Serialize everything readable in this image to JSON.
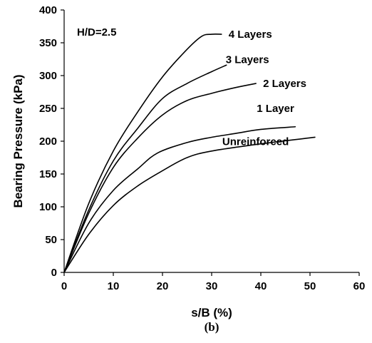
{
  "chart_data": {
    "type": "line",
    "xlabel": "s/B (%)",
    "ylabel": "Bearing Pressure (kPa)",
    "xlim": [
      0,
      60
    ],
    "ylim": [
      0,
      400
    ],
    "xticks": [
      0,
      10,
      20,
      30,
      40,
      50,
      60
    ],
    "yticks": [
      0,
      50,
      100,
      150,
      200,
      250,
      300,
      350,
      400
    ],
    "grid": false,
    "annotation": "H/D=2.5",
    "caption": "(b)",
    "series": [
      {
        "name": "4 Layers",
        "x": [
          0,
          5,
          10,
          15,
          20,
          25,
          28,
          30,
          32
        ],
        "y": [
          0,
          105,
          185,
          245,
          298,
          340,
          360,
          363,
          363
        ]
      },
      {
        "name": "3 Layers",
        "x": [
          0,
          5,
          10,
          15,
          20,
          25,
          30,
          33
        ],
        "y": [
          0,
          95,
          170,
          220,
          265,
          288,
          306,
          316
        ]
      },
      {
        "name": "2 Layers",
        "x": [
          0,
          5,
          10,
          15,
          20,
          25,
          30,
          35,
          39
        ],
        "y": [
          0,
          90,
          160,
          205,
          240,
          262,
          273,
          282,
          288
        ]
      },
      {
        "name": "1 Layer",
        "x": [
          0,
          5,
          10,
          15,
          19,
          25,
          30,
          35,
          40,
          47
        ],
        "y": [
          0,
          75,
          125,
          158,
          182,
          198,
          206,
          212,
          218,
          222
        ]
      },
      {
        "name": "Unreinforced",
        "x": [
          0,
          5,
          10,
          15,
          20,
          25,
          30,
          40,
          51
        ],
        "y": [
          0,
          58,
          102,
          132,
          155,
          175,
          185,
          196,
          206
        ]
      }
    ]
  }
}
